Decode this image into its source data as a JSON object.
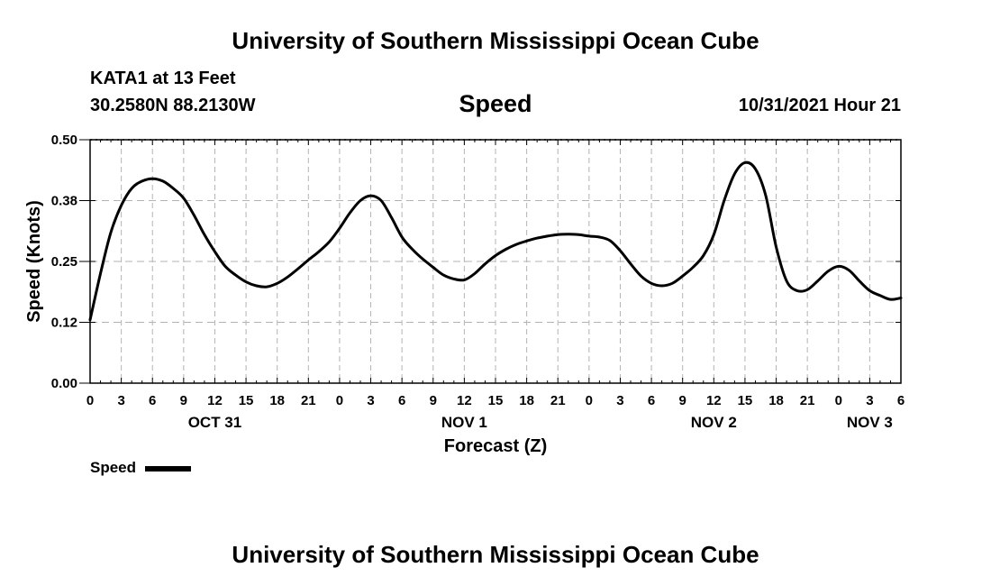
{
  "header": {
    "title_top": "University of Southern Mississippi Ocean Cube",
    "station": "KATA1 at 13 Feet",
    "coords": "30.2580N  88.2130W",
    "chart_title": "Speed",
    "timestamp": "10/31/2021 Hour 21",
    "title_bottom": "University of Southern Mississippi Ocean Cube"
  },
  "colors": {
    "line": "#000000",
    "grid": "#b3b3b3"
  },
  "chart_data": {
    "type": "line",
    "title": "Speed",
    "xlabel": "Forecast (Z)",
    "ylabel": "Speed (Knots)",
    "xlim": [
      0,
      78
    ],
    "ylim": [
      0,
      0.5
    ],
    "grid": true,
    "y_ticks": [
      0.0,
      0.125,
      0.25,
      0.375,
      0.5
    ],
    "y_tick_labels": [
      "0.00",
      "0.12",
      "0.25",
      "0.38",
      "0.50"
    ],
    "x_ticks": [
      0,
      3,
      6,
      9,
      12,
      15,
      18,
      21,
      24,
      27,
      30,
      33,
      36,
      39,
      42,
      45,
      48,
      51,
      54,
      57,
      60,
      63,
      66,
      69,
      72,
      75,
      78
    ],
    "x_tick_labels": [
      "0",
      "3",
      "6",
      "9",
      "12",
      "15",
      "18",
      "21",
      "0",
      "3",
      "6",
      "9",
      "12",
      "15",
      "18",
      "21",
      "0",
      "3",
      "6",
      "9",
      "12",
      "15",
      "18",
      "21",
      "0",
      "3",
      "6"
    ],
    "day_labels": [
      {
        "x": 12,
        "label": "OCT 31"
      },
      {
        "x": 36,
        "label": "NOV 1"
      },
      {
        "x": 60,
        "label": "NOV 2"
      },
      {
        "x": 75,
        "label": "NOV 3"
      }
    ],
    "series": [
      {
        "name": "Speed",
        "x": [
          0,
          1,
          2,
          3,
          4,
          5,
          6,
          7,
          8,
          9,
          10,
          11,
          12,
          13,
          14,
          15,
          16,
          17,
          18,
          19,
          20,
          21,
          22,
          23,
          24,
          25,
          26,
          27,
          28,
          29,
          30,
          31,
          32,
          33,
          34,
          35,
          36,
          37,
          38,
          39,
          40,
          41,
          42,
          43,
          44,
          45,
          46,
          47,
          48,
          49,
          50,
          51,
          52,
          53,
          54,
          55,
          56,
          57,
          58,
          59,
          60,
          61,
          62,
          63,
          64,
          65,
          66,
          67,
          68,
          69,
          70,
          71,
          72,
          73,
          74,
          75,
          76,
          77,
          78
        ],
        "values": [
          0.13,
          0.225,
          0.31,
          0.365,
          0.4,
          0.415,
          0.42,
          0.415,
          0.4,
          0.38,
          0.345,
          0.305,
          0.27,
          0.24,
          0.222,
          0.208,
          0.2,
          0.198,
          0.205,
          0.218,
          0.235,
          0.253,
          0.27,
          0.29,
          0.318,
          0.35,
          0.375,
          0.385,
          0.375,
          0.34,
          0.3,
          0.275,
          0.255,
          0.238,
          0.222,
          0.214,
          0.212,
          0.225,
          0.245,
          0.262,
          0.275,
          0.285,
          0.292,
          0.298,
          0.302,
          0.305,
          0.306,
          0.305,
          0.302,
          0.3,
          0.293,
          0.272,
          0.245,
          0.22,
          0.205,
          0.2,
          0.205,
          0.22,
          0.238,
          0.262,
          0.305,
          0.375,
          0.43,
          0.453,
          0.44,
          0.385,
          0.28,
          0.21,
          0.19,
          0.192,
          0.21,
          0.23,
          0.24,
          0.232,
          0.21,
          0.19,
          0.18,
          0.172,
          0.175
        ]
      }
    ]
  },
  "legend": {
    "label": "Speed"
  }
}
